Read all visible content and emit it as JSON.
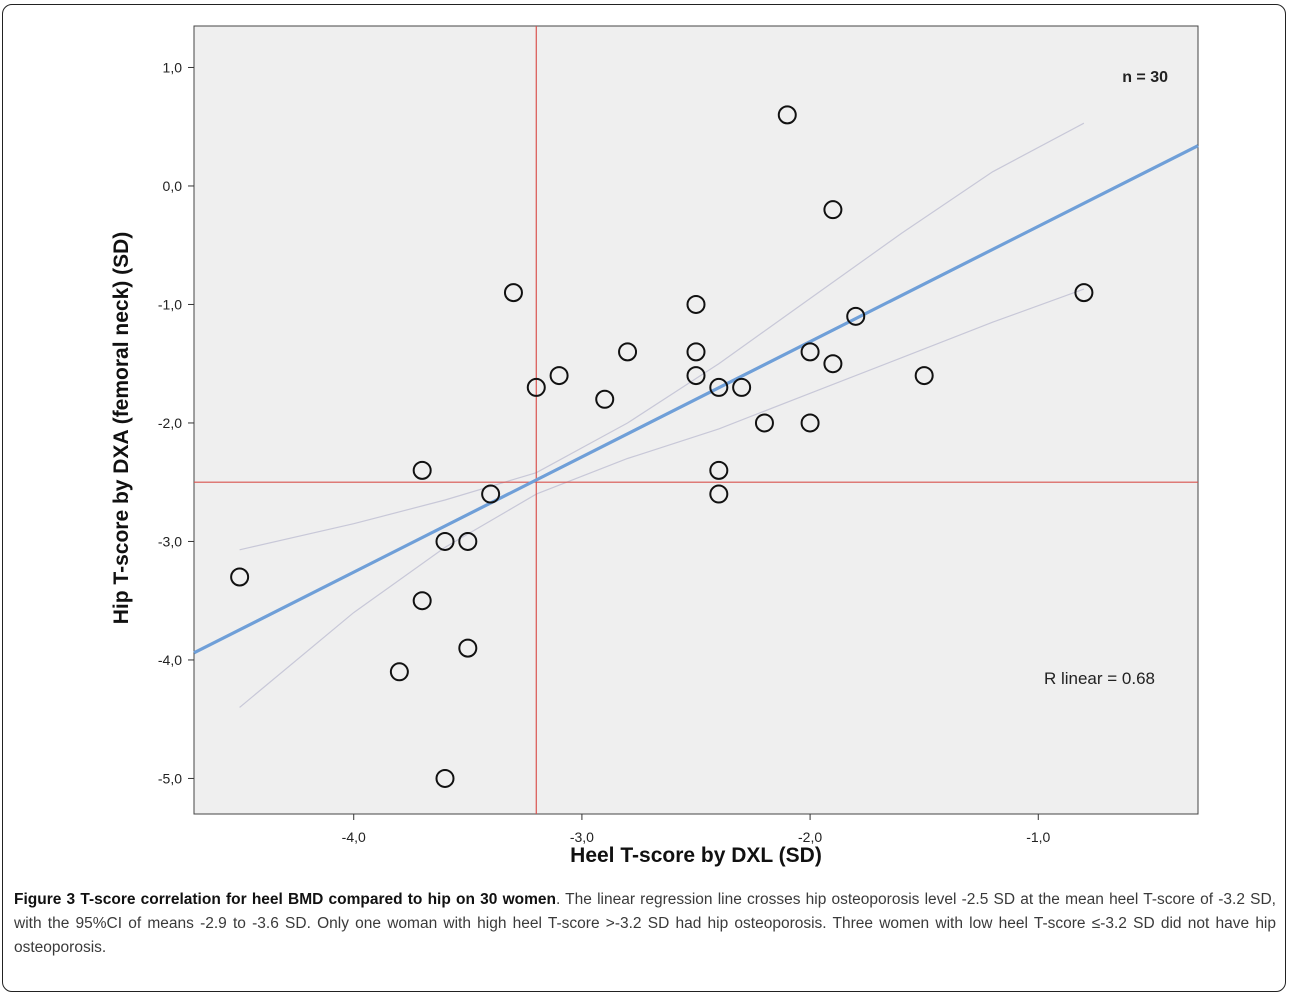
{
  "chart_data": {
    "type": "scatter",
    "title": "",
    "xlabel": "Heel T-score by DXL (SD)",
    "ylabel": "Hip T-score by DXA (femoral neck) (SD)",
    "xlim": [
      -4.7,
      -0.3
    ],
    "ylim": [
      -5.3,
      1.35
    ],
    "xticks": [
      -4.0,
      -3.0,
      -2.0,
      -1.0
    ],
    "xtick_labels": [
      "-4,0",
      "-3,0",
      "-2,0",
      "-1,0"
    ],
    "yticks": [
      1.0,
      0.0,
      -1.0,
      -2.0,
      -3.0,
      -4.0,
      -5.0
    ],
    "ytick_labels": [
      "1,0",
      "0,0",
      "-1,0",
      "-2,0",
      "-3,0",
      "-4,0",
      "-5,0"
    ],
    "grid": false,
    "background": "#efefef",
    "points": [
      {
        "x": -4.5,
        "y": -3.3
      },
      {
        "x": -3.8,
        "y": -4.1
      },
      {
        "x": -3.7,
        "y": -2.4
      },
      {
        "x": -3.7,
        "y": -3.5
      },
      {
        "x": -3.6,
        "y": -3.0
      },
      {
        "x": -3.6,
        "y": -5.0
      },
      {
        "x": -3.5,
        "y": -3.0
      },
      {
        "x": -3.5,
        "y": -3.9
      },
      {
        "x": -3.4,
        "y": -2.6
      },
      {
        "x": -3.3,
        "y": -0.9
      },
      {
        "x": -3.2,
        "y": -1.7
      },
      {
        "x": -3.1,
        "y": -1.6
      },
      {
        "x": -2.9,
        "y": -1.8
      },
      {
        "x": -2.8,
        "y": -1.4
      },
      {
        "x": -2.5,
        "y": -1.0
      },
      {
        "x": -2.5,
        "y": -1.4
      },
      {
        "x": -2.5,
        "y": -1.6
      },
      {
        "x": -2.4,
        "y": -1.7
      },
      {
        "x": -2.4,
        "y": -2.4
      },
      {
        "x": -2.4,
        "y": -2.6
      },
      {
        "x": -2.3,
        "y": -1.7
      },
      {
        "x": -2.2,
        "y": -2.0
      },
      {
        "x": -2.1,
        "y": 0.6
      },
      {
        "x": -2.0,
        "y": -1.4
      },
      {
        "x": -2.0,
        "y": -2.0
      },
      {
        "x": -1.9,
        "y": -0.2
      },
      {
        "x": -1.9,
        "y": -1.5
      },
      {
        "x": -1.8,
        "y": -1.1
      },
      {
        "x": -1.5,
        "y": -1.6
      },
      {
        "x": -0.8,
        "y": -0.9
      }
    ],
    "regression_line": {
      "x": [
        -4.7,
        -0.3
      ],
      "y": [
        -3.94,
        0.34
      ],
      "color": "#6f9fd8"
    },
    "ci_upper": {
      "x": [
        -4.5,
        -4.0,
        -3.6,
        -3.2,
        -2.8,
        -2.4,
        -2.0,
        -1.6,
        -1.2,
        -0.8
      ],
      "y": [
        -3.07,
        -2.85,
        -2.65,
        -2.42,
        -2.0,
        -1.5,
        -0.95,
        -0.4,
        0.12,
        0.53
      ],
      "color": "#c8c8d8"
    },
    "ci_lower": {
      "x": [
        -4.5,
        -4.0,
        -3.6,
        -3.2,
        -2.8,
        -2.4,
        -2.0,
        -1.6,
        -1.2,
        -0.8
      ],
      "y": [
        -4.4,
        -3.6,
        -3.05,
        -2.6,
        -2.3,
        -2.05,
        -1.75,
        -1.45,
        -1.15,
        -0.87
      ],
      "color": "#c8c8d8"
    },
    "reference_lines": [
      {
        "orientation": "vertical",
        "value": -3.2,
        "color": "#d9534f"
      },
      {
        "orientation": "horizontal",
        "value": -2.5,
        "color": "#d9534f"
      }
    ],
    "annotations": {
      "n_label": "n = 30",
      "r_label": "R linear = 0.68"
    }
  },
  "caption": {
    "bold": "Figure 3 T-score correlation for heel BMD compared to hip on 30 women",
    "text": ". The linear regression line crosses hip osteoporosis level -2.5 SD at the mean heel T-score of -3.2 SD, with the 95%CI of means -2.9 to -3.6 SD. Only one woman with high heel T-score >-3.2 SD had hip osteoporosis. Three women with low heel T-score ≤-3.2 SD did not have hip osteoporosis."
  }
}
